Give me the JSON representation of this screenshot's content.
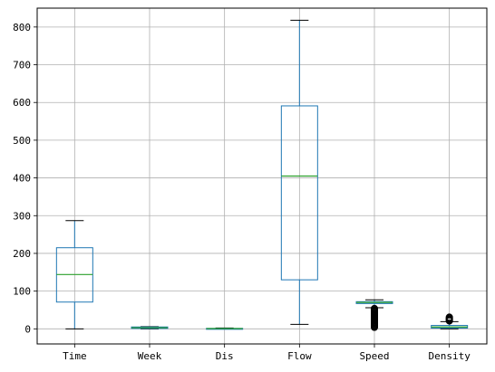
{
  "chart_data": {
    "type": "boxplot",
    "title": "",
    "xlabel": "",
    "ylabel": "",
    "ylim": [
      -40,
      850
    ],
    "yticks": [
      0,
      100,
      200,
      300,
      400,
      500,
      600,
      700,
      800
    ],
    "ytick_labels": [
      "0",
      "100",
      "200",
      "300",
      "400",
      "500",
      "600",
      "700",
      "800"
    ],
    "grid": true,
    "colors": {
      "box": "#1f77b4",
      "median": "#2ca02c",
      "grid": "#b0b0b0",
      "axes": "#000000",
      "flier_edge": "#000000"
    },
    "categories": [
      "Time",
      "Week",
      "Dis",
      "Flow",
      "Speed",
      "Density"
    ],
    "boxes": [
      {
        "label": "Time",
        "whisker_low": 0,
        "q1": 71,
        "median": 144,
        "q3": 215,
        "whisker_high": 287,
        "fliers": []
      },
      {
        "label": "Week",
        "whisker_low": 0,
        "q1": 1,
        "median": 3,
        "q3": 5,
        "whisker_high": 6,
        "fliers": []
      },
      {
        "label": "Dis",
        "whisker_low": 0,
        "q1": 0.3,
        "median": 0.7,
        "q3": 1.2,
        "whisker_high": 2.2,
        "fliers": []
      },
      {
        "label": "Flow",
        "whisker_low": 12,
        "q1": 130,
        "median": 405,
        "q3": 591,
        "whisker_high": 818,
        "fliers": []
      },
      {
        "label": "Speed",
        "whisker_low": 56,
        "q1": 67,
        "median": 70,
        "q3": 72,
        "whisker_high": 77,
        "fliers": [
          54,
          52,
          50,
          48,
          46,
          44,
          42,
          40,
          38,
          36,
          34,
          32,
          30,
          28,
          26,
          24,
          22,
          20,
          18,
          16,
          14,
          12,
          10,
          8,
          6,
          4
        ]
      },
      {
        "label": "Density",
        "whisker_low": 0,
        "q1": 2,
        "median": 5,
        "q3": 9,
        "whisker_high": 19,
        "fliers": [
          21,
          23,
          25,
          27,
          29,
          31
        ]
      }
    ]
  }
}
